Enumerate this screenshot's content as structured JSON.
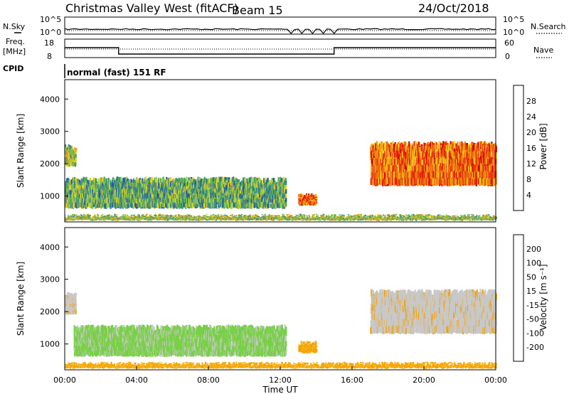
{
  "header": {
    "station": "Christmas Valley West (fitACF)",
    "beam": "Beam 15",
    "date": "24/Oct/2018"
  },
  "left_labels": {
    "nsky": "N.Sky",
    "freq_line1": "Freq.",
    "freq_line2": "[MHz]",
    "cpid": "CPID"
  },
  "right_labels": {
    "nsearch": "N.Search",
    "nave": "Nave"
  },
  "mode_text": "normal (fast) 151 RF",
  "colors": {
    "power": [
      "#1c1cf0",
      "#2455a8",
      "#33898c",
      "#4aab55",
      "#9ad64a",
      "#f0d21c",
      "#f58c14",
      "#e84010",
      "#dc0000"
    ],
    "velocity": [
      "#e80000",
      "#f07000",
      "#f5a000",
      "#f0c83c",
      "#c8c8c8",
      "#c8c8c8",
      "#78d046",
      "#3cb43c",
      "#2a8a5a",
      "#2060a0",
      "#1c28c8"
    ]
  },
  "chart_data": [
    {
      "type": "line",
      "name": "noise-panel",
      "left_ticks": [
        "10^5",
        "10^0"
      ],
      "right_ticks": [
        "10^5",
        "10^0"
      ],
      "series": [
        {
          "name": "N.Sky",
          "style": "solid"
        },
        {
          "name": "N.Search",
          "style": "dotted"
        }
      ]
    },
    {
      "type": "line",
      "name": "frequency-nave-panel",
      "left_ticks": [
        "18",
        "8"
      ],
      "right_ticks": [
        "60",
        "0"
      ],
      "series": [
        {
          "name": "Freq.",
          "style": "solid",
          "x": [
            "00:00",
            "03:00",
            "15:00",
            "24:00"
          ],
          "y": [
            14.5,
            10.0,
            14.5,
            14.5
          ]
        },
        {
          "name": "Nave",
          "style": "dotted"
        }
      ]
    },
    {
      "type": "heatmap",
      "name": "power",
      "ylabel": "Slant Range [km]",
      "yticks": [
        "4000",
        "3000",
        "2000",
        "1000"
      ],
      "ylim": [
        200,
        4600
      ],
      "xlim": [
        "00:00",
        "24:00"
      ],
      "colorbar": {
        "label": "Power [dB]",
        "ticks": [
          "28",
          "24",
          "20",
          "16",
          "12",
          "8",
          "4"
        ]
      },
      "regions": [
        {
          "t_start": 0.0,
          "t_end": 0.6,
          "range_low": 1900,
          "range_high": 2600,
          "level": "12-20 dB"
        },
        {
          "t_start": 0.0,
          "t_end": 12.3,
          "range_low": 600,
          "range_high": 1600,
          "level": "8-20 dB"
        },
        {
          "t_start": 13.0,
          "t_end": 14.0,
          "range_low": 700,
          "range_high": 1100,
          "level": "24-30 dB"
        },
        {
          "t_start": 17.0,
          "t_end": 24.0,
          "range_low": 1300,
          "range_high": 2700,
          "level": "20-30 dB"
        },
        {
          "t_start": 0.0,
          "t_end": 24.0,
          "range_low": 250,
          "range_high": 450,
          "level": "8-20 dB"
        }
      ]
    },
    {
      "type": "heatmap",
      "name": "velocity",
      "ylabel": "Slant Range [km]",
      "yticks": [
        "4000",
        "3000",
        "2000",
        "1000"
      ],
      "ylim": [
        200,
        4600
      ],
      "xlim": [
        "00:00",
        "24:00"
      ],
      "xticks": [
        "00:00",
        "04:00",
        "08:00",
        "12:00",
        "16:00",
        "20:00",
        "00:00"
      ],
      "xlabel": "Time UT",
      "colorbar": {
        "label": "Velocity [m s⁻¹]",
        "ticks": [
          "200",
          "100",
          "50",
          "15",
          "-15",
          "-50",
          "-100",
          "-200"
        ]
      },
      "regions": [
        {
          "t_start": 0.0,
          "t_end": 0.6,
          "range_low": 1900,
          "range_high": 2600,
          "level": "-15 to 15 m/s"
        },
        {
          "t_start": 0.5,
          "t_end": 12.3,
          "range_low": 600,
          "range_high": 1600,
          "level": "15 to 50 m/s"
        },
        {
          "t_start": 13.0,
          "t_end": 14.0,
          "range_low": 700,
          "range_high": 1100,
          "level": "-50 to -15 m/s"
        },
        {
          "t_start": 17.0,
          "t_end": 24.0,
          "range_low": 1300,
          "range_high": 2700,
          "level": "-15 to 15 m/s"
        },
        {
          "t_start": 0.0,
          "t_end": 24.0,
          "range_low": 250,
          "range_high": 450,
          "level": "-50 to -15 m/s"
        }
      ]
    }
  ]
}
